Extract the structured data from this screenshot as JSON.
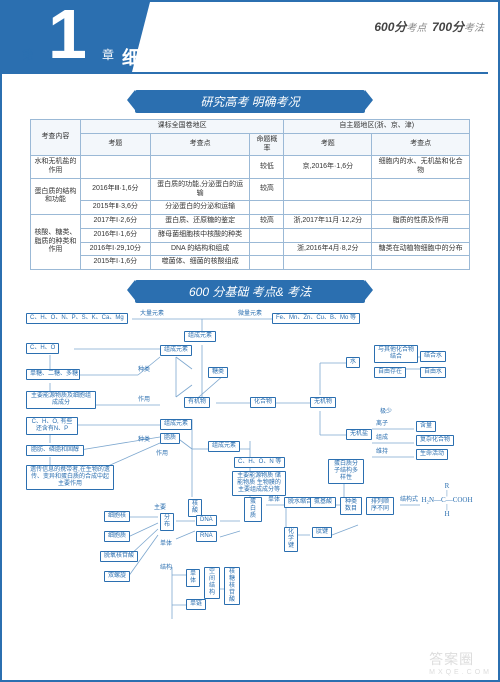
{
  "header": {
    "chapter_prefix": "第",
    "chapter_number": "1",
    "chapter_suffix": "章",
    "chapter_title": "细胞的分子组成",
    "score_left": "600分",
    "score_left_sub": "考点",
    "score_right": "700分",
    "score_right_sub": "考法"
  },
  "section1_title": "研究高考  明确考况",
  "section2_title": "600 分基础  考点&  考法",
  "table": {
    "h_topic": "考查内容",
    "h_national": "课标全国卷地区",
    "h_auto": "自主题地区(浙、京、津)",
    "h_q": "考题",
    "h_kp": "考查点",
    "h_rate": "命题概率",
    "rows": [
      {
        "topic": "水和无机盐的作用",
        "rs": [
          [
            "",
            "",
            "较低",
            "京,2016年·1,6分",
            "细胞内的水、无机盐和化合物"
          ]
        ]
      },
      {
        "topic": "蛋白质的结构和功能",
        "rs": [
          [
            "2016年Ⅲ·1,6分",
            "蛋白质的功能,分泌蛋白的运输",
            "较高",
            "",
            ""
          ],
          [
            "2015年Ⅱ·3,6分",
            "分泌蛋白的分泌和运输",
            "",
            "",
            ""
          ]
        ]
      },
      {
        "topic": "核酸、糖类、脂质的种类和作用",
        "rs": [
          [
            "2017年Ⅰ·2,6分",
            "蛋白质、还原糖的鉴定",
            "较高",
            "浙,2017年11月·12,2分",
            "脂质的性质及作用"
          ],
          [
            "2016年Ⅰ·1,6分",
            "酵母菌细胞核中核酸的种类",
            "",
            "",
            ""
          ],
          [
            "2016年Ⅰ·29,10分",
            "DNA 的结构和组成",
            "",
            "浙,2016年4月·8,2分",
            "糖类在动植物细胞中的分布"
          ],
          [
            "2015年Ⅰ·1,6分",
            "噬菌体、细菌的核酸组成",
            "",
            "",
            ""
          ]
        ]
      }
    ]
  },
  "map": {
    "macro": "C、H、O、N、P、S、K、Ca、Mg",
    "macro_lab": "大量元素",
    "zucheng_yuansu": "组成元素",
    "micro_lab": "微量元素",
    "micro": "Fe、Mn、Zn、Cu、B、Mo 等",
    "cho": "C、H、O",
    "sugar_types": "单糖、二糖、多糖",
    "sugar_role": "主要能源物质及细胞组成成分",
    "chon_lipid": "C、H、O, 有些还含有N、P",
    "lipid_types": "脂肪、磷脂和固醇",
    "lipid_role": "遗传信息的携带者,在生物的遗传、变异和蛋白质的合成中起主要作用",
    "he1": "组成元素",
    "he2": "种类",
    "he3": "作用",
    "sugars": "糖类",
    "youji": "有机物",
    "huahewu": "化合物",
    "wuji": "无机物",
    "hesuan": "核酸",
    "chon": "C、H、O、N 等",
    "danbai": "蛋白质",
    "lipid": "脂质",
    "xibaohe": "细胞核",
    "xibaozhi": "细胞质",
    "fenbu": "分布",
    "tuoyanghetang": "脱氧核苷酸",
    "dna": "DNA",
    "rna": "RNA",
    "shuangluoxuan": "双螺旋",
    "danlian": "单链",
    "jiegou": "结构",
    "hegan": "核糖核苷酸",
    "danti": "单体",
    "zhuyao": "主要能源物质 储能物质 生物膜的主要组成成分等",
    "aminosuan": "氨基酸",
    "taijian": "肽键",
    "tuoshui": "脱水缩合",
    "huaxue": "化学键",
    "paili": "排列顺序不同",
    "zhonglei": "种类 数目",
    "dayangxing": "蛋白质分子结构多样性",
    "taijianshi": "肽键结构式",
    "water": "水",
    "jiehe": "结合水",
    "ziyou_water": "自由水",
    "yuhuahe": "与其他化合物结合",
    "ziyou": "自由存在",
    "wujiyan": "无机盐",
    "lizi": "离子",
    "jishao": "极少",
    "fuza": "复杂化合物",
    "shengming": "生命活动",
    "hanliang": "含量",
    "zucheng": "组成",
    "weichi": "维持",
    "mol1": "R",
    "mol2": "|",
    "mol3": "H₂N—C—COOH",
    "mol4": "|",
    "mol5": "H",
    "jiegoushi": "结构式"
  },
  "watermark": "答案圈",
  "watermark_sub": "MXQE.COM"
}
